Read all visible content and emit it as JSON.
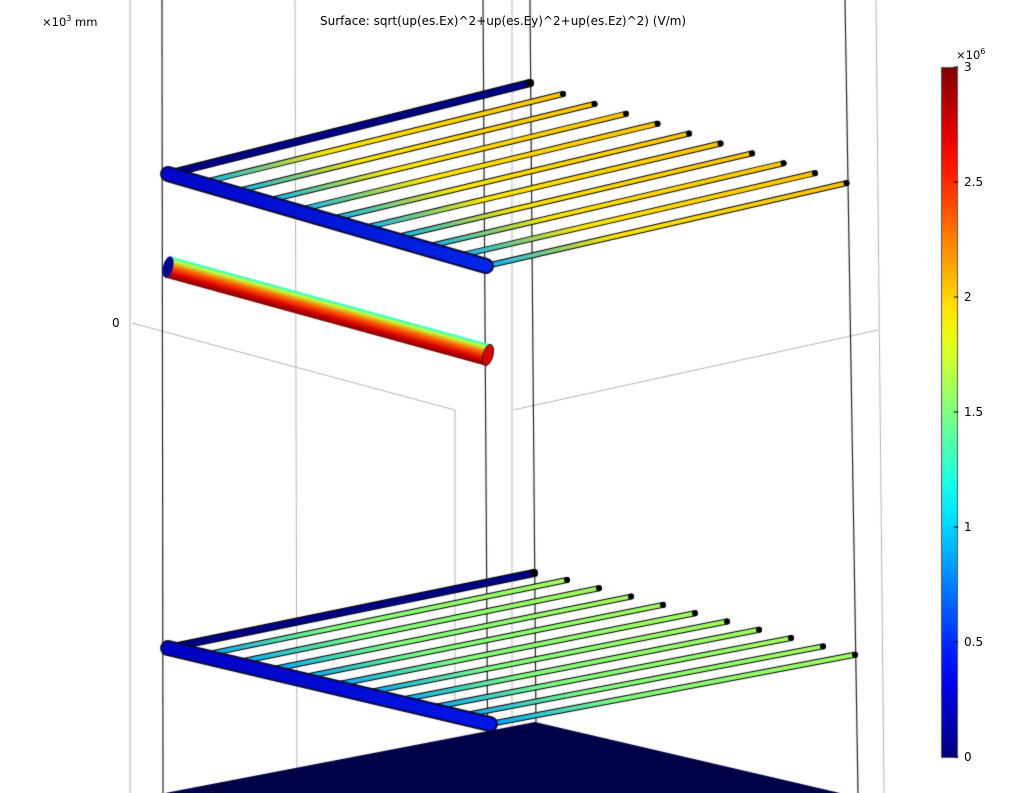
{
  "chart_data": {
    "type": "surface-3d",
    "title": "Surface: sqrt(up(es.Ex)^2+up(es.Ey)^2+up(es.Ez)^2) (V/m)",
    "axis": {
      "unit_base": "×10",
      "unit_exp": "3",
      "unit": "mm",
      "tick_labels": [
        "0"
      ]
    },
    "colorbar": {
      "colormap": "rainbow",
      "multiplier_base": "×10",
      "multiplier_exp": "6",
      "range": [
        0,
        3
      ],
      "ticks": [
        {
          "value": 3,
          "label": "3"
        },
        {
          "value": 2.5,
          "label": "2.5"
        },
        {
          "value": 2,
          "label": "2"
        },
        {
          "value": 1.5,
          "label": "1.5"
        },
        {
          "value": 1,
          "label": "1"
        },
        {
          "value": 0.5,
          "label": "0.5"
        },
        {
          "value": 0,
          "label": "0"
        }
      ]
    },
    "objects": [
      {
        "name": "upper-grid",
        "crossbar_value": 0.5,
        "back_rail_value": 0.05,
        "rod_value": 2.05,
        "rod_count": 10
      },
      {
        "name": "middle-cylinder",
        "value_min": 1.2,
        "value_max": 2.95
      },
      {
        "name": "lower-grid",
        "crossbar_value": 0.45,
        "back_rail_value": 0.05,
        "rod_value": 1.6,
        "rod_count": 10
      },
      {
        "name": "ground-plane",
        "value": 0.0
      }
    ]
  }
}
